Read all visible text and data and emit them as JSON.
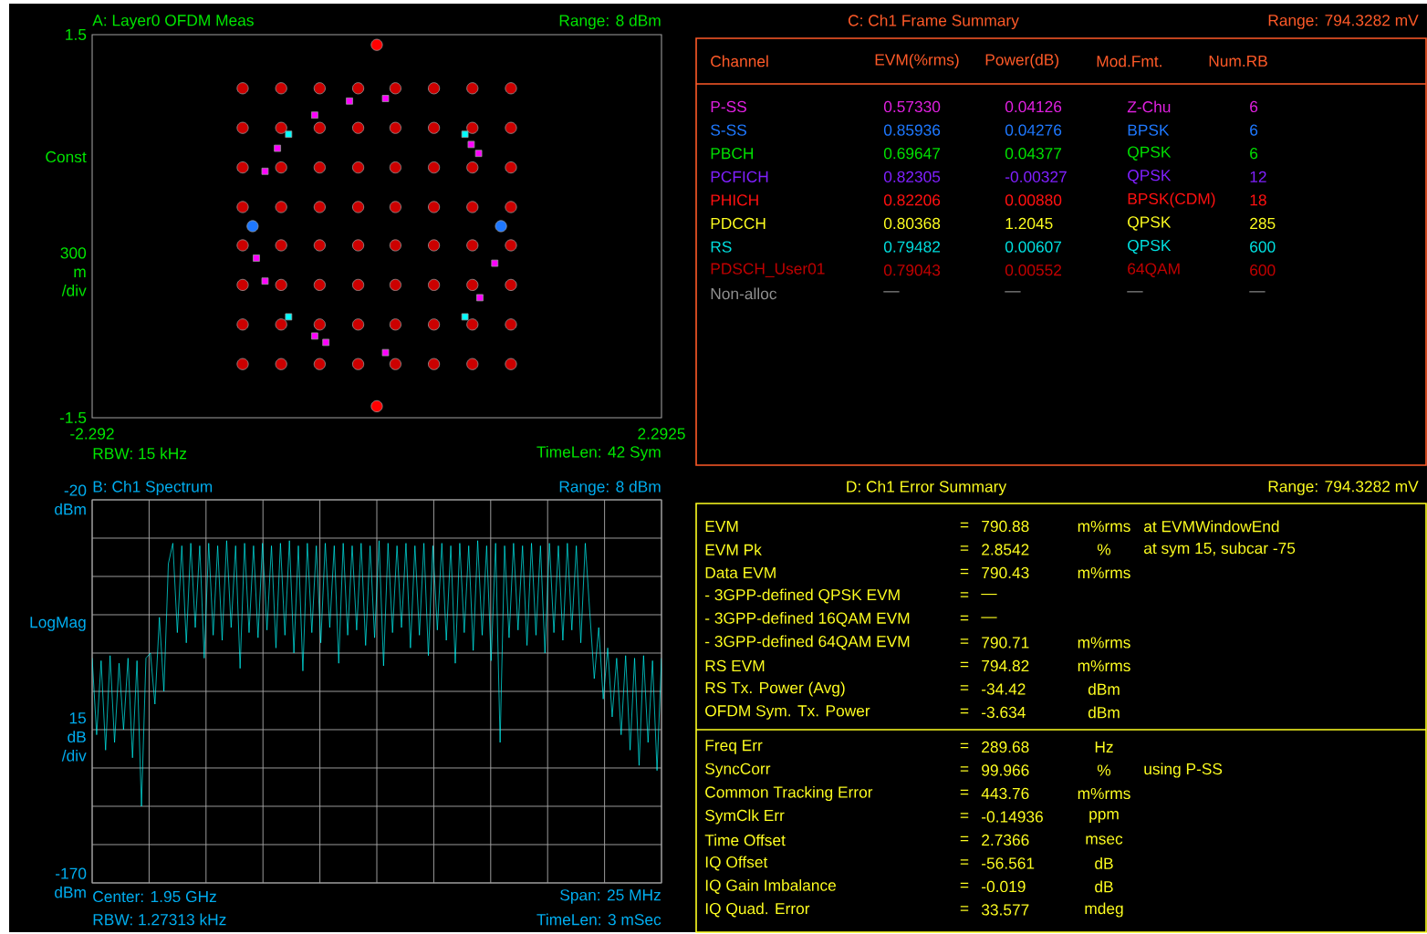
{
  "chart_data": [
    {
      "type": "scatter",
      "title": "A: Layer0 OFDM Meas",
      "ylabel": "300 m /div",
      "annotations": [
        "Range: 8 dBm",
        "Const",
        "RBW: 15 kHz",
        "TimeLen: 42  Sym"
      ],
      "xlim": [
        -2.292,
        2.2925
      ],
      "xticks": [
        -2.292,
        2.2925
      ],
      "ylim": [
        -1.5,
        1.5
      ],
      "yticks": [
        -1.5,
        1.5
      ],
      "marker": "circle",
      "series": [
        {
          "color": "#cc0000",
          "x": [
            -1.08,
            -0.77,
            -0.46,
            -0.15,
            0.15,
            0.46,
            0.77,
            1.08,
            -1.08,
            -0.77,
            -0.46,
            -0.15,
            0.15,
            0.46,
            0.77,
            1.08,
            -1.08,
            -0.77,
            -0.46,
            -0.15,
            0.15,
            0.46,
            0.77,
            1.08,
            -1.08,
            -0.77,
            -0.46,
            -0.15,
            0.15,
            0.46,
            0.77,
            1.08,
            -1.08,
            -0.77,
            -0.46,
            -0.15,
            0.15,
            0.46,
            0.77,
            1.08,
            -1.08,
            -0.77,
            -0.46,
            -0.15,
            0.15,
            0.46,
            0.77,
            1.08,
            -1.08,
            -0.77,
            -0.46,
            -0.15,
            0.15,
            0.46,
            0.77,
            1.08,
            -1.08,
            -0.77,
            -0.46,
            -0.15,
            0.15,
            0.46,
            0.77,
            1.08
          ],
          "values": [
            1.08,
            1.08,
            1.08,
            1.08,
            1.08,
            1.08,
            1.08,
            1.08,
            0.77,
            0.77,
            0.77,
            0.77,
            0.77,
            0.77,
            0.77,
            0.77,
            0.46,
            0.46,
            0.46,
            0.46,
            0.46,
            0.46,
            0.46,
            0.46,
            0.15,
            0.15,
            0.15,
            0.15,
            0.15,
            0.15,
            0.15,
            0.15,
            -0.15,
            -0.15,
            -0.15,
            -0.15,
            -0.15,
            -0.15,
            -0.15,
            -0.15,
            -0.46,
            -0.46,
            -0.46,
            -0.46,
            -0.46,
            -0.46,
            -0.46,
            -0.46,
            -0.77,
            -0.77,
            -0.77,
            -0.77,
            -0.77,
            -0.77,
            -0.77,
            -0.77,
            -1.08,
            -1.08,
            -1.08,
            -1.08,
            -1.08,
            -1.08,
            -1.08,
            -1.08
          ]
        },
        {
          "color": "#ff0000",
          "x": [
            0,
            0
          ],
          "values": [
            1.42,
            -1.41
          ]
        },
        {
          "color": "#ff00ff",
          "marker": "square",
          "x": [
            0.07,
            -0.22,
            -0.5,
            -0.8,
            -0.9,
            -0.97,
            -0.9,
            -0.5,
            -0.41,
            0.07,
            0.83,
            0.95,
            0.76,
            0.82
          ],
          "values": [
            1.0,
            0.98,
            0.87,
            0.61,
            0.43,
            -0.25,
            -0.43,
            -0.86,
            -0.91,
            -0.99,
            -0.56,
            -0.29,
            0.64,
            0.57
          ]
        },
        {
          "color": "#1e78ff",
          "x": [
            -1.0,
            1.0
          ],
          "values": [
            0,
            0
          ]
        },
        {
          "color": "#00ffff",
          "marker": "square",
          "x": [
            -0.71,
            0.71,
            -0.71,
            0.71
          ],
          "values": [
            0.72,
            0.72,
            -0.71,
            -0.71
          ]
        }
      ]
    },
    {
      "type": "line",
      "title": "B: Ch1 Spectrum",
      "ylabel": "15 dB /div",
      "annotations": [
        "Range: 8 dBm",
        "LogMag",
        "Center: 1.95 GHz",
        "Span: 25 MHz",
        "RBW: 1.27313 kHz",
        "TimeLen: 3 mSec"
      ],
      "categories": [
        null,
        null,
        null,
        null,
        null,
        null,
        null,
        null,
        null,
        null,
        null,
        null,
        null,
        null,
        null,
        null,
        null,
        null,
        null,
        null,
        null,
        null,
        null,
        null,
        null,
        null,
        null,
        null,
        null,
        null,
        null,
        null,
        null,
        null,
        null,
        null,
        null,
        null,
        null,
        null,
        null,
        null,
        null,
        null,
        null,
        null,
        null,
        null,
        null,
        null,
        null,
        null,
        null,
        null,
        null,
        null,
        null,
        null,
        null,
        null,
        null,
        null,
        null,
        null,
        null,
        null,
        null,
        null,
        null,
        null,
        null,
        null,
        null,
        null,
        null,
        null,
        null,
        null,
        null,
        null,
        null,
        null,
        null,
        null,
        null,
        null,
        null,
        null,
        null,
        null,
        null,
        null,
        null,
        null,
        null,
        null,
        null,
        null,
        null,
        null,
        null,
        null,
        null,
        null,
        null,
        null,
        null,
        null,
        null,
        null,
        null,
        null,
        null,
        null,
        null,
        null,
        null,
        null,
        null,
        null,
        null,
        null,
        null,
        null,
        null,
        null,
        null,
        null
      ],
      "ylim": [
        -170,
        -20
      ],
      "yticks": [
        {
          "value": -170,
          "label": "-170 dBm"
        },
        {
          "value": -155,
          "label": null
        },
        {
          "value": -140,
          "label": null
        },
        {
          "value": -125,
          "label": null
        },
        {
          "value": -110,
          "label": null
        },
        {
          "value": -95,
          "label": null
        },
        {
          "value": -80,
          "label": null
        },
        {
          "value": -65,
          "label": null
        },
        {
          "value": -50,
          "label": null
        },
        {
          "value": -35,
          "label": null
        },
        {
          "value": -20,
          "label": "-20 dBm"
        }
      ],
      "grid": true,
      "line_style": "solid",
      "marker": "none",
      "series": [
        {
          "color": "#00ffff",
          "values": [
            -82,
            -112,
            -83,
            -118,
            -81,
            -115,
            -84,
            -110,
            -82,
            -121,
            -83,
            -140,
            -82,
            -80,
            -100,
            -66,
            -95,
            -45,
            -37,
            -72,
            -38,
            -76,
            -37,
            -70,
            -38,
            -82,
            -37,
            -73,
            -38,
            -75,
            -36,
            -70,
            -38,
            -86,
            -37,
            -72,
            -38,
            -74,
            -37,
            -71,
            -38,
            -78,
            -37,
            -73,
            -36,
            -80,
            -38,
            -87,
            -37,
            -72,
            -38,
            -76,
            -37,
            -70,
            -38,
            -84,
            -37,
            -73,
            -38,
            -71,
            -37,
            -77,
            -38,
            -74,
            -36,
            -85,
            -37,
            -72,
            -38,
            -70,
            -37,
            -78,
            -38,
            -73,
            -37,
            -81,
            -38,
            -71,
            -37,
            -75,
            -38,
            -84,
            -37,
            -72,
            -38,
            -79,
            -36,
            -73,
            -38,
            -83,
            -37,
            -115,
            -38,
            -74,
            -37,
            -71,
            -38,
            -77,
            -37,
            -73,
            -38,
            -80,
            -37,
            -72,
            -38,
            -75,
            -37,
            -71,
            -38,
            -76,
            -37,
            -64,
            -90,
            -70,
            -98,
            -78,
            -105,
            -82,
            -112,
            -81,
            -118,
            -82,
            -124,
            -81,
            -115,
            -83,
            -126,
            -82
          ]
        }
      ]
    },
    {
      "type": "other",
      "title": "C: Ch1 Frame Summary",
      "annotations": [
        "Range: 794.3282 mV"
      ],
      "color": "#ff5a28",
      "categories": [
        "Channel",
        "EVM(%rms)",
        "Power(dB)",
        "Mod.Fmt.",
        "Num.RB"
      ],
      "colors": [
        "#e020e0",
        "#1e78ff",
        "#00e000",
        "#8020ff",
        "#ff1010",
        "#ffff20",
        "#00e0e0",
        "#c00000",
        "#909090"
      ],
      "cell_labels": [
        [
          "P-SS",
          "0.57330",
          "0.04126",
          "Z-Chu",
          "6"
        ],
        [
          "S-SS",
          "0.85936",
          "0.04276",
          "BPSK",
          "6"
        ],
        [
          "PBCH",
          "0.69647",
          "0.04377",
          "QPSK",
          "6"
        ],
        [
          "PCFICH",
          "0.82305",
          "-0.00327",
          "QPSK",
          "12"
        ],
        [
          "PHICH",
          "0.82206",
          "0.00880",
          "BPSK(CDM)",
          "18"
        ],
        [
          "PDCCH",
          "0.80368",
          "1.2045",
          "QPSK",
          "285"
        ],
        [
          "RS",
          "0.79482",
          "0.00607",
          "QPSK",
          "600"
        ],
        [
          "PDSCH_User01",
          "0.79043",
          "0.00552",
          "64QAM",
          "600"
        ],
        [
          "Non-alloc",
          "—",
          "—",
          "—",
          "—"
        ]
      ]
    },
    {
      "type": "other",
      "title": "D: Ch1 Error Summary",
      "annotations": [
        "Range: 794.3282 mV"
      ],
      "color": "#ffff20",
      "cell_labels": [
        [
          "EVM",
          "=",
          "790.88",
          "m%rms",
          "at EVMWindowEnd"
        ],
        [
          "EVM Pk",
          "=",
          "2.8542",
          "%",
          "at sym 15, subcar -75"
        ],
        [
          "Data EVM",
          "=",
          "790.43",
          "m%rms",
          null
        ],
        [
          "- 3GPP-defined QPSK EVM",
          "=",
          "—",
          null,
          null
        ],
        [
          "- 3GPP-defined 16QAM EVM",
          "=",
          "—",
          null,
          null
        ],
        [
          "- 3GPP-defined 64QAM EVM",
          "=",
          "790.71",
          "m%rms",
          null
        ],
        [
          "RS EVM",
          "=",
          "794.82",
          "m%rms",
          null
        ],
        [
          "RS Tx. Power (Avg)",
          "=",
          "-34.42",
          "dBm",
          null
        ],
        [
          "OFDM Sym. Tx. Power",
          "=",
          "-3.634",
          "dBm",
          null
        ]
      ]
    },
    {
      "type": "other",
      "color": "#ffff20",
      "cell_labels": [
        [
          "Freq Err",
          "=",
          "289.68",
          "Hz",
          null
        ],
        [
          "SyncCorr",
          "=",
          "99.966",
          "%",
          "using P-SS"
        ],
        [
          "Common Tracking Error",
          "=",
          "443.76",
          "m%rms",
          null
        ],
        [
          "SymClk Err",
          "=",
          "-0.14936",
          "ppm",
          null
        ],
        [
          "Time Offset",
          "=",
          "2.7366",
          "msec",
          null
        ],
        [
          "IQ Offset",
          "=",
          "-56.561",
          "dB",
          null
        ],
        [
          "IQ Gain Imbalance",
          "=",
          "-0.019",
          "dB",
          null
        ],
        [
          "IQ Quad. Error",
          "=",
          "33.577",
          "mdeg",
          null
        ]
      ]
    }
  ]
}
